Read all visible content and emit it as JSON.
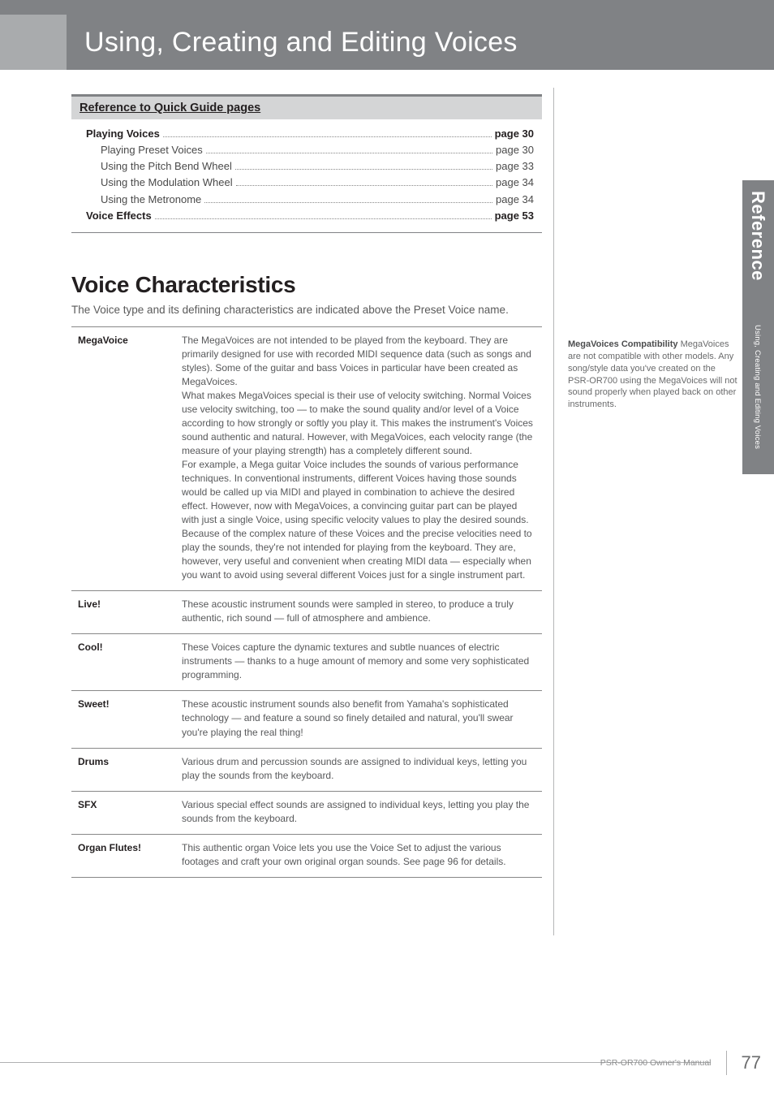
{
  "chapter_title": "Using, Creating and Editing Voices",
  "ref_box": {
    "header": "Reference to Quick Guide pages",
    "items": [
      {
        "label": "Playing Voices",
        "page": "page 30",
        "bold": true,
        "indent": false
      },
      {
        "label": "Playing Preset Voices",
        "page": "page 30",
        "bold": false,
        "indent": true
      },
      {
        "label": "Using the Pitch Bend Wheel",
        "page": "page 33",
        "bold": false,
        "indent": true
      },
      {
        "label": "Using the Modulation Wheel",
        "page": "page 34",
        "bold": false,
        "indent": true
      },
      {
        "label": "Using the Metronome",
        "page": "page 34",
        "bold": false,
        "indent": true
      },
      {
        "label": "Voice Effects",
        "page": "page 53",
        "bold": true,
        "indent": false
      }
    ]
  },
  "section": {
    "title": "Voice Characteristics",
    "intro": "The Voice type and its defining characteristics are indicated above the Preset Voice name."
  },
  "voices": [
    {
      "name": "MegaVoice",
      "desc": "The MegaVoices are not intended to be played from the keyboard. They are primarily designed for use with recorded MIDI sequence data (such as songs and styles). Some of the guitar and bass Voices in particular have been created as MegaVoices.\nWhat makes MegaVoices special is their use of velocity switching. Normal Voices use velocity switching, too — to make the sound quality and/or level of a Voice according to how strongly or softly you play it. This makes the instrument's Voices sound authentic and natural. However, with MegaVoices, each velocity range (the measure of your playing strength) has a completely different sound.\nFor example, a Mega guitar Voice includes the sounds of various performance techniques. In conventional instruments, different Voices having those sounds would be called up via MIDI and played in combination to achieve the desired effect. However, now with MegaVoices, a convincing guitar part can be played with just a single Voice, using specific velocity values to play the desired sounds.\nBecause of the complex nature of these Voices and the precise velocities need to play the sounds, they're not intended for playing from the keyboard. They are, however, very useful and convenient when creating MIDI data — especially when you want to avoid using several different Voices just for a single instrument part."
    },
    {
      "name": "Live!",
      "desc": "These acoustic instrument sounds were sampled in stereo, to produce a truly authentic, rich sound — full of atmosphere and ambience."
    },
    {
      "name": "Cool!",
      "desc": "These Voices capture the dynamic textures and subtle nuances of electric instruments — thanks to a huge amount of memory and some very sophisticated programming."
    },
    {
      "name": "Sweet!",
      "desc": "These acoustic instrument sounds also benefit from Yamaha's sophisticated technology — and feature a sound so finely detailed and natural, you'll swear you're playing the real thing!"
    },
    {
      "name": "Drums",
      "desc": "Various drum and percussion sounds are assigned to individual keys, letting you play the sounds from the keyboard."
    },
    {
      "name": "SFX",
      "desc": "Various special effect sounds are assigned to individual keys, letting you play the sounds from the keyboard."
    },
    {
      "name": "Organ Flutes!",
      "desc": "This authentic organ Voice lets you use the Voice Set to adjust the various footages and craft your own original organ sounds. See page 96 for details."
    }
  ],
  "side_note": {
    "title": "MegaVoices Compatibility",
    "body": "MegaVoices are not compatible with other models. Any song/style data you've created on the PSR-OR700 using the MegaVoices will not sound properly when played back on other instruments."
  },
  "side_tab": {
    "main": "Reference",
    "sub": "Using, Creating and Editing Voices"
  },
  "footer": {
    "text": "PSR-OR700 Owner's Manual",
    "page": "77"
  }
}
